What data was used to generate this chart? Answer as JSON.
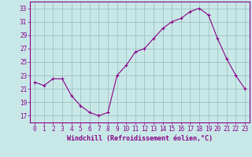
{
  "x": [
    0,
    1,
    2,
    3,
    4,
    5,
    6,
    7,
    8,
    9,
    10,
    11,
    12,
    13,
    14,
    15,
    16,
    17,
    18,
    19,
    20,
    21,
    22,
    23
  ],
  "y": [
    22.0,
    21.5,
    22.5,
    22.5,
    20.0,
    18.5,
    17.5,
    17.0,
    17.5,
    23.0,
    24.5,
    26.5,
    27.0,
    28.5,
    30.0,
    31.0,
    31.5,
    32.5,
    33.0,
    32.0,
    28.5,
    25.5,
    23.0,
    21.0
  ],
  "line_color": "#880088",
  "marker": "+",
  "marker_size": 3,
  "bg_color": "#c8e8e8",
  "grid_color": "#99bbbb",
  "xlabel": "Windchill (Refroidissement éolien,°C)",
  "xlim": [
    -0.5,
    23.5
  ],
  "ylim": [
    16,
    34
  ],
  "yticks": [
    17,
    19,
    21,
    23,
    25,
    27,
    29,
    31,
    33
  ],
  "xticks": [
    0,
    1,
    2,
    3,
    4,
    5,
    6,
    7,
    8,
    9,
    10,
    11,
    12,
    13,
    14,
    15,
    16,
    17,
    18,
    19,
    20,
    21,
    22,
    23
  ],
  "xlabel_color": "#880088",
  "tick_color": "#880088",
  "axis_color": "#880088",
  "label_fontsize": 6.0,
  "tick_fontsize": 5.5
}
